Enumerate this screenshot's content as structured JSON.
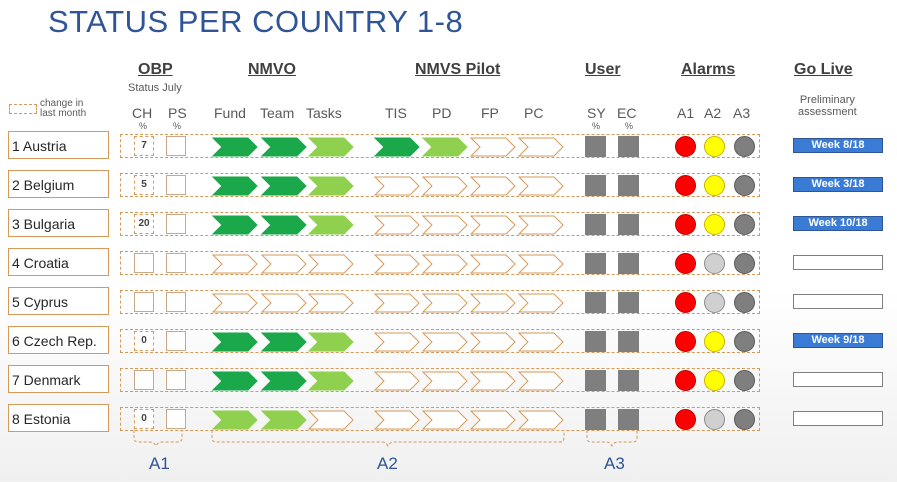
{
  "title": "STATUS PER COUNTRY 1-8",
  "legend": {
    "line1": "change in",
    "line2": "last month"
  },
  "groups": {
    "obp": "OBP",
    "obp_sub": "Status July",
    "nmvo": "NMVO",
    "pilot": "NMVS Pilot",
    "user": "User",
    "alarms": "Alarms",
    "golive": "Go Live",
    "golive_sub1": "Preliminary",
    "golive_sub2": "assessment"
  },
  "columns": {
    "ch": "CH",
    "ps": "PS",
    "pct": "%",
    "fund": "Fund",
    "team": "Team",
    "tasks": "Tasks",
    "tis": "TIS",
    "pd": "PD",
    "fp": "FP",
    "pc": "PC",
    "sy": "SY",
    "ec": "EC",
    "a1": "A1",
    "a2": "A2",
    "a3": "A3"
  },
  "colors": {
    "dark_green": "#1aa84a",
    "light_green": "#8fd14f",
    "empty": "#ffffff",
    "red": "#ff0000",
    "yellow": "#ffff00",
    "light_gray": "#d0d0d0",
    "dark_gray": "#7f7f7f",
    "golive_blue": "#3a7bd5",
    "accent": "#2f5597",
    "dash": "#d59a5a"
  },
  "rows": [
    {
      "country": "1 Austria",
      "ch": "7",
      "ps": "",
      "chevrons": [
        "dark",
        "dark",
        "light",
        "dark",
        "light",
        "empty",
        "empty"
      ],
      "a2": "yellow",
      "golive": "Week 8/18"
    },
    {
      "country": "2 Belgium",
      "ch": "5",
      "ps": "",
      "chevrons": [
        "dark",
        "dark",
        "light",
        "empty",
        "empty",
        "empty",
        "empty"
      ],
      "a2": "yellow",
      "golive": "Week 3/18"
    },
    {
      "country": "3 Bulgaria",
      "ch": "20",
      "ps": "",
      "chevrons": [
        "dark",
        "dark",
        "light",
        "empty",
        "empty",
        "empty",
        "empty"
      ],
      "a2": "yellow",
      "golive": "Week 10/18"
    },
    {
      "country": "4 Croatia",
      "ch": "",
      "ps": "",
      "chevrons": [
        "empty",
        "empty",
        "empty",
        "empty",
        "empty",
        "empty",
        "empty"
      ],
      "a2": "gray",
      "golive": ""
    },
    {
      "country": "5 Cyprus",
      "ch": "",
      "ps": "",
      "chevrons": [
        "empty",
        "empty",
        "empty",
        "empty",
        "empty",
        "empty",
        "empty"
      ],
      "a2": "gray",
      "golive": ""
    },
    {
      "country": "6 Czech Rep.",
      "ch": "0",
      "ps": "",
      "chevrons": [
        "dark",
        "dark",
        "light",
        "empty",
        "empty",
        "empty",
        "empty"
      ],
      "a2": "yellow",
      "golive": "Week 9/18"
    },
    {
      "country": "7 Denmark",
      "ch": "",
      "ps": "",
      "chevrons": [
        "dark",
        "dark",
        "light",
        "empty",
        "empty",
        "empty",
        "empty"
      ],
      "a2": "yellow",
      "golive": ""
    },
    {
      "country": "8 Estonia",
      "ch": "0",
      "ps": "",
      "chevrons": [
        "light",
        "light",
        "empty",
        "empty",
        "empty",
        "empty",
        "empty"
      ],
      "a2": "gray",
      "golive": ""
    }
  ],
  "bottom": {
    "a1": "A1",
    "a2": "A2",
    "a3": "A3"
  }
}
